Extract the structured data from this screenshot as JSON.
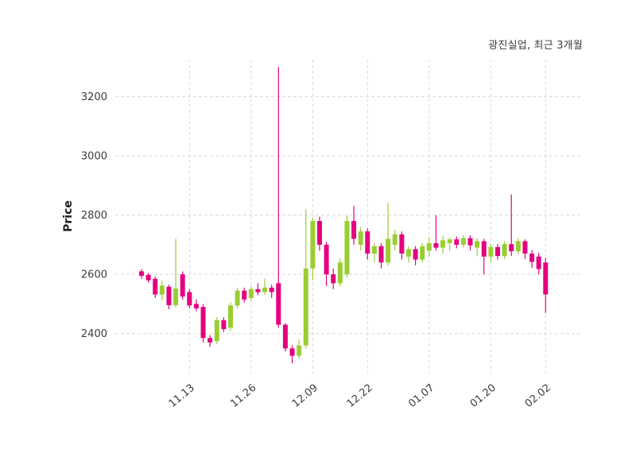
{
  "header": {
    "title": "광진실업, 최근 3개월"
  },
  "chart_data": {
    "type": "candlestick",
    "title": "광진실업, 최근 3개월",
    "xlabel": "",
    "ylabel": "Price",
    "y_ticks": [
      2400,
      2600,
      2800,
      3000,
      3200
    ],
    "ylim": [
      2265,
      3325
    ],
    "x_tick_labels": [
      "11.13",
      "11.26",
      "12.09",
      "12.22",
      "01.07",
      "01.20",
      "02.02"
    ],
    "x_tick_indices": [
      7,
      16,
      25,
      33,
      42,
      51,
      59
    ],
    "grid": "dashed",
    "legend": "none",
    "up_color": "#9acd32",
    "down_color": "#e4007e",
    "candles_format": [
      "open",
      "high",
      "low",
      "close"
    ],
    "candles": [
      [
        2610,
        2618,
        2585,
        2595
      ],
      [
        2598,
        2605,
        2572,
        2580
      ],
      [
        2585,
        2592,
        2520,
        2532
      ],
      [
        2532,
        2578,
        2512,
        2562
      ],
      [
        2558,
        2565,
        2482,
        2496
      ],
      [
        2496,
        2720,
        2488,
        2552
      ],
      [
        2600,
        2610,
        2515,
        2525
      ],
      [
        2540,
        2550,
        2485,
        2495
      ],
      [
        2500,
        2515,
        2475,
        2485
      ],
      [
        2490,
        2500,
        2370,
        2385
      ],
      [
        2385,
        2395,
        2355,
        2370
      ],
      [
        2375,
        2455,
        2365,
        2445
      ],
      [
        2445,
        2455,
        2405,
        2415
      ],
      [
        2420,
        2505,
        2410,
        2495
      ],
      [
        2495,
        2555,
        2485,
        2545
      ],
      [
        2545,
        2555,
        2505,
        2515
      ],
      [
        2520,
        2560,
        2510,
        2550
      ],
      [
        2550,
        2570,
        2530,
        2540
      ],
      [
        2540,
        2585,
        2530,
        2555
      ],
      [
        2555,
        2565,
        2520,
        2540
      ],
      [
        2570,
        3300,
        2420,
        2430
      ],
      [
        2430,
        2435,
        2340,
        2350
      ],
      [
        2350,
        2360,
        2300,
        2325
      ],
      [
        2325,
        2380,
        2315,
        2360
      ],
      [
        2360,
        2820,
        2350,
        2620
      ],
      [
        2620,
        2790,
        2580,
        2780
      ],
      [
        2780,
        2795,
        2680,
        2700
      ],
      [
        2700,
        2710,
        2560,
        2600
      ],
      [
        2600,
        2620,
        2550,
        2570
      ],
      [
        2570,
        2655,
        2560,
        2640
      ],
      [
        2600,
        2800,
        2590,
        2780
      ],
      [
        2780,
        2830,
        2700,
        2720
      ],
      [
        2700,
        2760,
        2680,
        2745
      ],
      [
        2745,
        2755,
        2650,
        2670
      ],
      [
        2670,
        2705,
        2640,
        2695
      ],
      [
        2695,
        2705,
        2620,
        2640
      ],
      [
        2640,
        2840,
        2630,
        2720
      ],
      [
        2700,
        2750,
        2680,
        2735
      ],
      [
        2735,
        2745,
        2650,
        2670
      ],
      [
        2660,
        2695,
        2640,
        2685
      ],
      [
        2685,
        2695,
        2630,
        2650
      ],
      [
        2650,
        2705,
        2640,
        2695
      ],
      [
        2680,
        2725,
        2660,
        2705
      ],
      [
        2705,
        2800,
        2680,
        2690
      ],
      [
        2690,
        2730,
        2670,
        2715
      ],
      [
        2705,
        2725,
        2680,
        2718
      ],
      [
        2718,
        2728,
        2688,
        2700
      ],
      [
        2700,
        2732,
        2690,
        2722
      ],
      [
        2722,
        2732,
        2680,
        2698
      ],
      [
        2690,
        2722,
        2662,
        2712
      ],
      [
        2712,
        2720,
        2600,
        2660
      ],
      [
        2660,
        2702,
        2642,
        2692
      ],
      [
        2692,
        2702,
        2650,
        2662
      ],
      [
        2662,
        2712,
        2652,
        2702
      ],
      [
        2702,
        2870,
        2662,
        2678
      ],
      [
        2678,
        2722,
        2668,
        2712
      ],
      [
        2712,
        2718,
        2652,
        2670
      ],
      [
        2670,
        2682,
        2622,
        2642
      ],
      [
        2660,
        2672,
        2600,
        2618
      ],
      [
        2640,
        2655,
        2470,
        2532
      ]
    ]
  }
}
